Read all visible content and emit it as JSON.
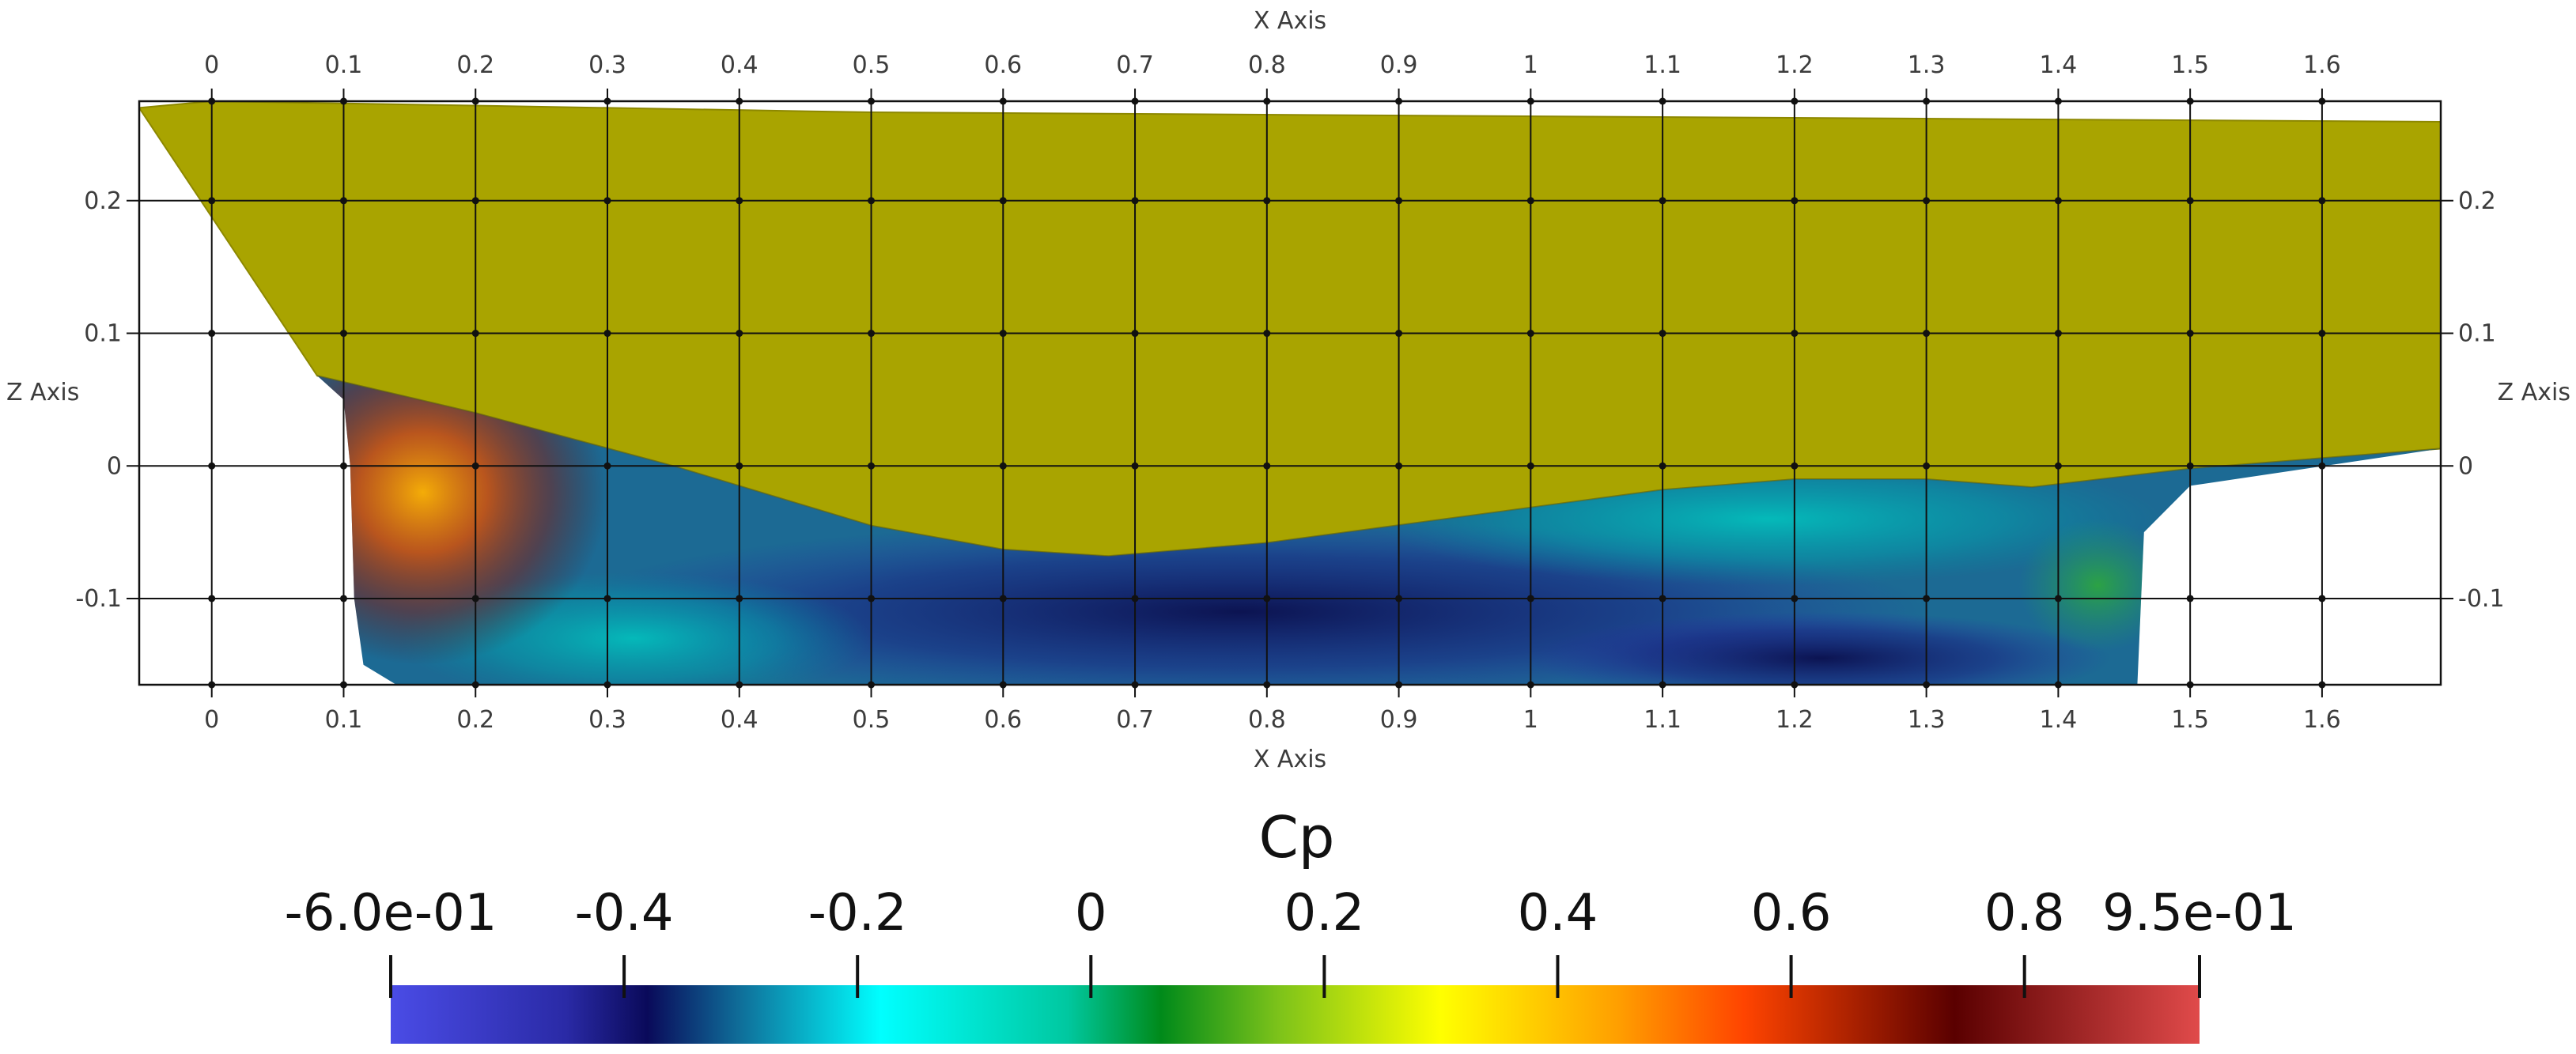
{
  "chart_data": {
    "type": "heatmap",
    "render": "3d-surface-pressure-contour",
    "axes": {
      "x_title_top": "X Axis",
      "x_title_bottom": "X Axis",
      "z_title_left": "Z Axis",
      "z_title_right": "Z Axis",
      "x_ticks": [
        0,
        0.1,
        0.2,
        0.3,
        0.4,
        0.5,
        0.6,
        0.7,
        0.8,
        0.9,
        1,
        1.1,
        1.2,
        1.3,
        1.4,
        1.5,
        1.6
      ],
      "x_tick_labels": [
        "0",
        "0.1",
        "0.2",
        "0.3",
        "0.4",
        "0.5",
        "0.6",
        "0.7",
        "0.8",
        "0.9",
        "1",
        "1.1",
        "1.2",
        "1.3",
        "1.4",
        "1.5",
        "1.6"
      ],
      "z_ticks": [
        0.2,
        0.1,
        0,
        -0.1
      ],
      "z_tick_labels": [
        "0.2",
        "0.1",
        "0",
        "-0.1"
      ],
      "xlim": [
        -0.055,
        1.69
      ],
      "zlim": [
        -0.165,
        0.275
      ],
      "grid": true
    },
    "surface": {
      "deck_z": 0.275,
      "stern_x": 1.69,
      "keel_z": -0.165,
      "unwetted_color": "#a9a400",
      "waterline_top": [
        [
          -0.055,
          0.27
        ],
        [
          0.08,
          0.068
        ],
        [
          0.2,
          0.04
        ],
        [
          0.35,
          0.0
        ],
        [
          0.5,
          -0.045
        ],
        [
          0.6,
          -0.063
        ],
        [
          0.68,
          -0.068
        ],
        [
          0.8,
          -0.058
        ],
        [
          0.95,
          -0.038
        ],
        [
          1.1,
          -0.018
        ],
        [
          1.2,
          -0.01
        ],
        [
          1.3,
          -0.01
        ],
        [
          1.38,
          -0.016
        ],
        [
          1.5,
          -0.002
        ],
        [
          1.69,
          0.013
        ]
      ],
      "wetted_outline": [
        [
          0.08,
          0.068
        ],
        [
          0.1,
          0.05
        ],
        [
          0.105,
          0.0
        ],
        [
          0.108,
          -0.1
        ],
        [
          0.115,
          -0.15
        ],
        [
          0.14,
          -0.165
        ],
        [
          1.46,
          -0.165
        ],
        [
          1.465,
          -0.05
        ],
        [
          1.5,
          -0.015
        ],
        [
          1.69,
          0.013
        ]
      ],
      "stern_cutout": [
        [
          1.465,
          -0.165
        ],
        [
          1.69,
          -0.165
        ],
        [
          1.69,
          0.013
        ],
        [
          1.465,
          -0.05
        ]
      ]
    },
    "colorbar": {
      "title": "Cp",
      "min": -0.6,
      "max": 0.95,
      "tick_values": [
        -0.6,
        -0.4,
        -0.2,
        0,
        0.2,
        0.4,
        0.6,
        0.8,
        0.95
      ],
      "tick_labels": [
        "-6.0e-01",
        "-0.4",
        "-0.2",
        "0",
        "0.2",
        "0.4",
        "0.6",
        "0.8",
        "9.5e-01"
      ],
      "stops": [
        {
          "v": -0.6,
          "color": "#4a4ce6"
        },
        {
          "v": -0.45,
          "color": "#2a2aa6"
        },
        {
          "v": -0.38,
          "color": "#0a0a5a"
        },
        {
          "v": -0.3,
          "color": "#0f6f9a"
        },
        {
          "v": -0.18,
          "color": "#00ffff"
        },
        {
          "v": -0.02,
          "color": "#00c8a0"
        },
        {
          "v": 0.06,
          "color": "#008a1a"
        },
        {
          "v": 0.16,
          "color": "#7cc21a"
        },
        {
          "v": 0.3,
          "color": "#ffff00"
        },
        {
          "v": 0.45,
          "color": "#ffa000"
        },
        {
          "v": 0.56,
          "color": "#ff4400"
        },
        {
          "v": 0.74,
          "color": "#5a0000"
        },
        {
          "v": 0.95,
          "color": "#e04a4a"
        }
      ]
    }
  }
}
